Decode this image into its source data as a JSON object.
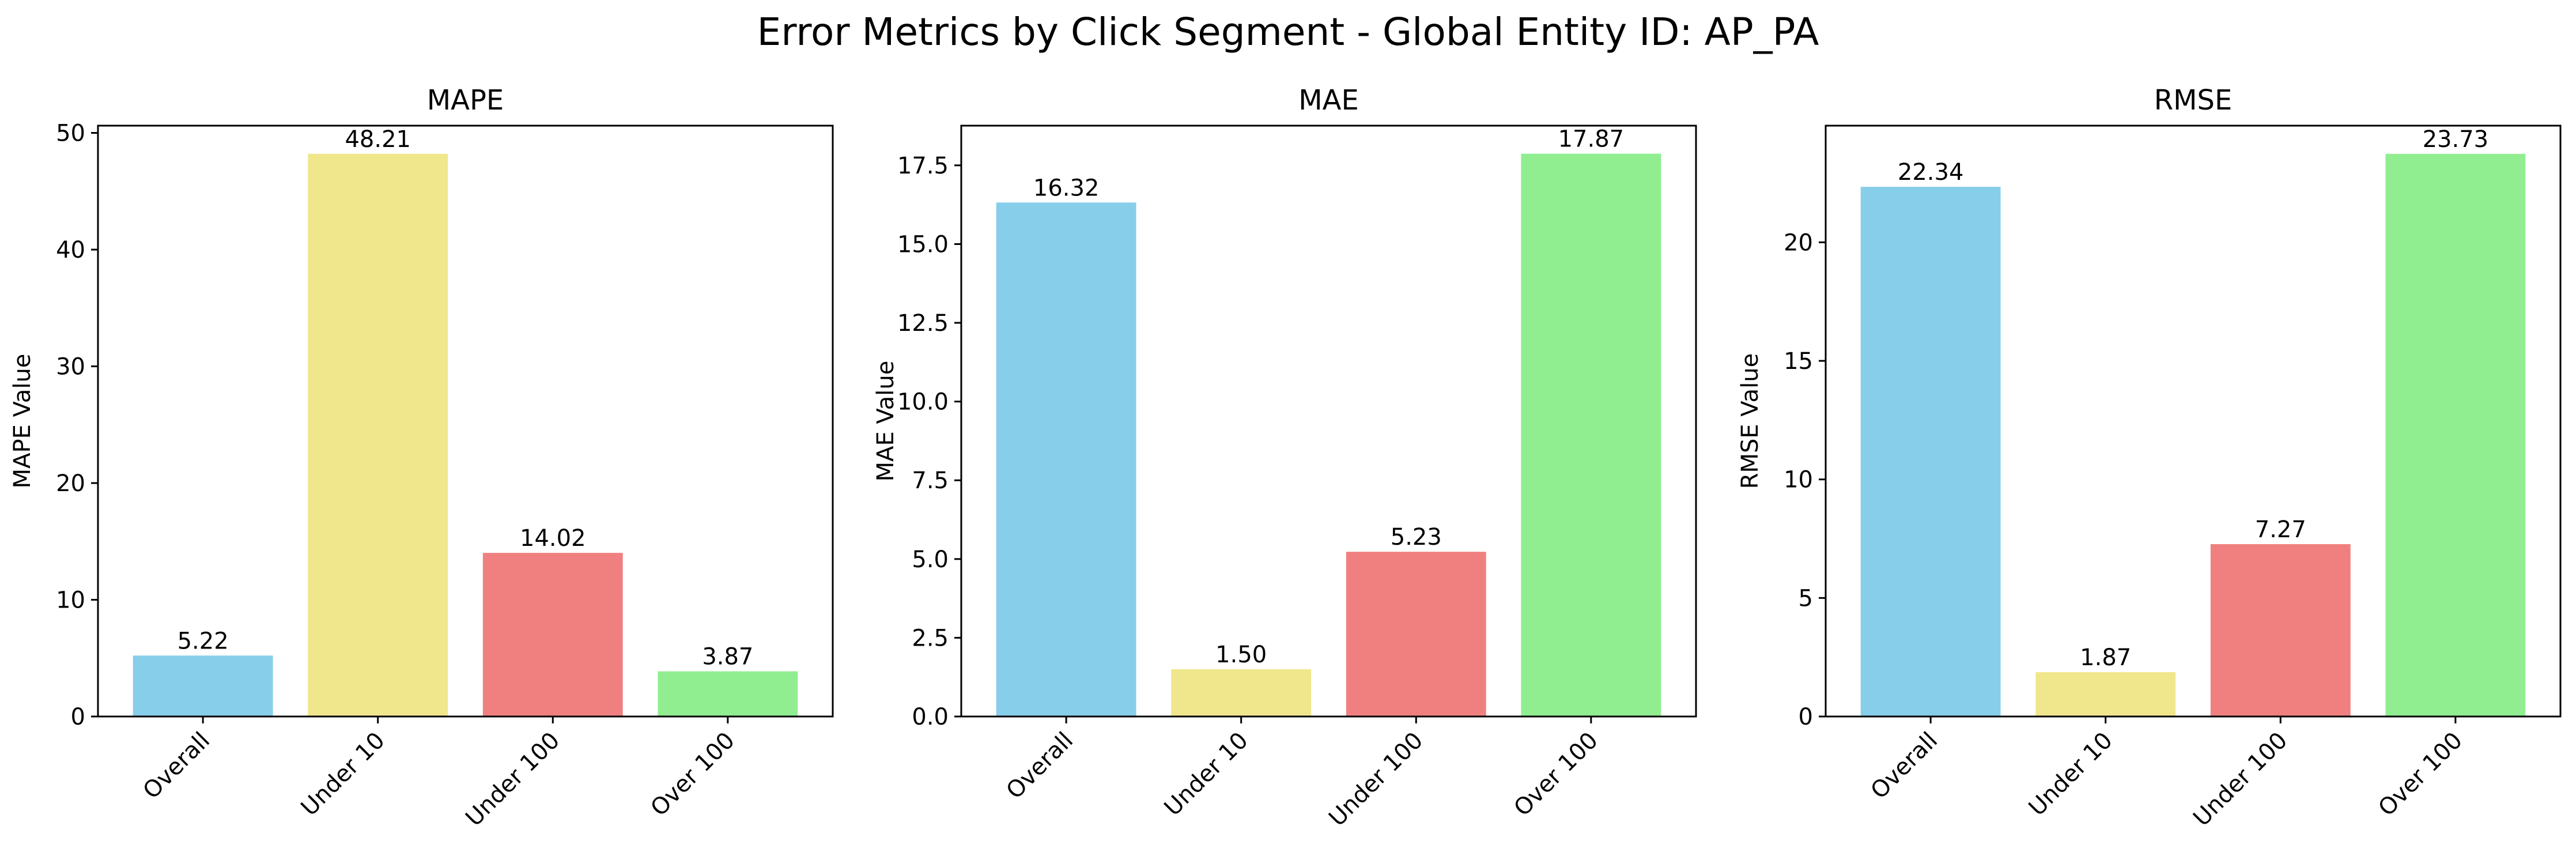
{
  "figure": {
    "suptitle": "Error Metrics by Click Segment - Global Entity ID: AP_PA"
  },
  "chart_data": [
    {
      "type": "bar",
      "title": "MAPE",
      "xlabel": "",
      "ylabel": "MAPE Value",
      "categories": [
        "Overall",
        "Under 10",
        "Under 100",
        "Over 100"
      ],
      "values": [
        5.22,
        48.21,
        14.02,
        3.87
      ],
      "value_labels": [
        "5.22",
        "48.21",
        "14.02",
        "3.87"
      ],
      "colors": [
        "#87ceeb",
        "#f0e68c",
        "#f08080",
        "#90ee90"
      ],
      "ylim": [
        0,
        50.62
      ],
      "yticks": [
        0,
        10,
        20,
        30,
        40,
        50
      ],
      "ytick_labels": [
        "0",
        "10",
        "20",
        "30",
        "40",
        "50"
      ],
      "grid": false,
      "legend": "none"
    },
    {
      "type": "bar",
      "title": "MAE",
      "xlabel": "",
      "ylabel": "MAE Value",
      "categories": [
        "Overall",
        "Under 10",
        "Under 100",
        "Over 100"
      ],
      "values": [
        16.32,
        1.5,
        5.23,
        17.87
      ],
      "value_labels": [
        "16.32",
        "1.50",
        "5.23",
        "17.87"
      ],
      "colors": [
        "#87ceeb",
        "#f0e68c",
        "#f08080",
        "#90ee90"
      ],
      "ylim": [
        0,
        18.76
      ],
      "yticks": [
        0,
        2.5,
        5,
        7.5,
        10,
        12.5,
        15,
        17.5
      ],
      "ytick_labels": [
        "0.0",
        "2.5",
        "5.0",
        "7.5",
        "10.0",
        "12.5",
        "15.0",
        "17.5"
      ],
      "grid": false,
      "legend": "none"
    },
    {
      "type": "bar",
      "title": "RMSE",
      "xlabel": "",
      "ylabel": "RMSE Value",
      "categories": [
        "Overall",
        "Under 10",
        "Under 100",
        "Over 100"
      ],
      "values": [
        22.34,
        1.87,
        7.27,
        23.73
      ],
      "value_labels": [
        "22.34",
        "1.87",
        "7.27",
        "23.73"
      ],
      "colors": [
        "#87ceeb",
        "#f0e68c",
        "#f08080",
        "#90ee90"
      ],
      "ylim": [
        0,
        24.92
      ],
      "yticks": [
        0,
        5,
        10,
        15,
        20
      ],
      "ytick_labels": [
        "0",
        "5",
        "10",
        "15",
        "20"
      ],
      "grid": false,
      "legend": "none"
    }
  ]
}
